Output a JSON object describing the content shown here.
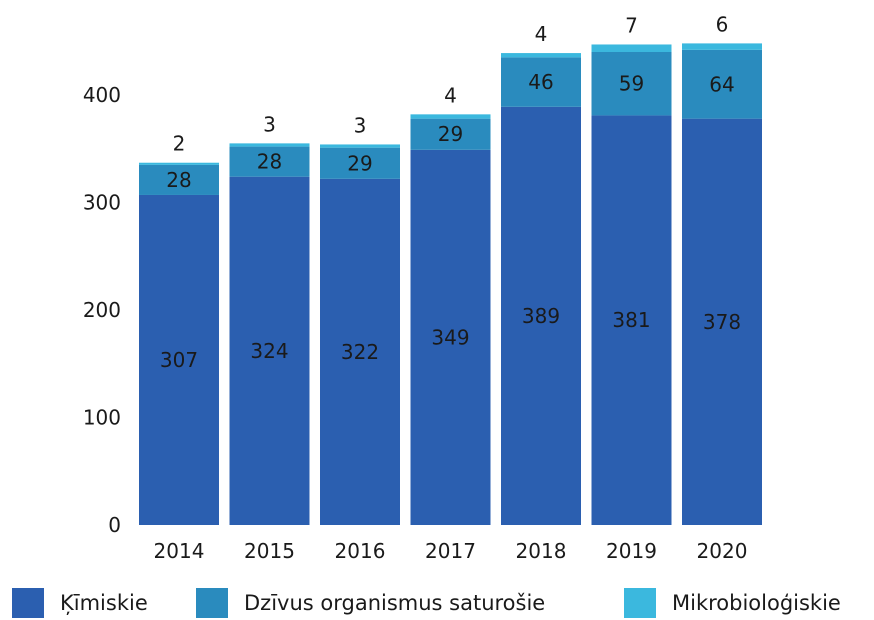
{
  "chart_data": {
    "type": "bar",
    "stacked": true,
    "categories": [
      "2014",
      "2015",
      "2016",
      "2017",
      "2018",
      "2019",
      "2020"
    ],
    "series": [
      {
        "name": "Ķīmiskie",
        "color": "#2B5FB0",
        "values": [
          307,
          324,
          322,
          349,
          389,
          381,
          378
        ]
      },
      {
        "name": "Dzīvus organismus saturošie",
        "color": "#2A8BBE",
        "values": [
          28,
          28,
          29,
          29,
          46,
          59,
          64
        ]
      },
      {
        "name": "Mikrobioloģiskie",
        "color": "#3BB8DE",
        "values": [
          2,
          3,
          3,
          4,
          4,
          7,
          6
        ]
      }
    ],
    "yticks": [
      0,
      100,
      200,
      300,
      400
    ],
    "ylim": [
      0,
      470
    ],
    "grid": false,
    "legend_position": "bottom"
  }
}
